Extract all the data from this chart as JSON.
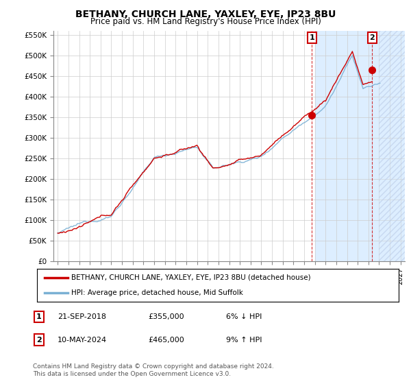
{
  "title": "BETHANY, CHURCH LANE, YAXLEY, EYE, IP23 8BU",
  "subtitle": "Price paid vs. HM Land Registry's House Price Index (HPI)",
  "ylabel_ticks": [
    "£0",
    "£50K",
    "£100K",
    "£150K",
    "£200K",
    "£250K",
    "£300K",
    "£350K",
    "£400K",
    "£450K",
    "£500K",
    "£550K"
  ],
  "ylim": [
    0,
    560000
  ],
  "xlim_start": 1994.6,
  "xlim_end": 2027.4,
  "sale1_date": "21-SEP-2018",
  "sale1_price": 355000,
  "sale1_year": 2018.72,
  "sale1_pct": "6% ↓ HPI",
  "sale2_date": "10-MAY-2024",
  "sale2_price": 465000,
  "sale2_year": 2024.36,
  "sale2_pct": "9% ↑ HPI",
  "legend_line1": "BETHANY, CHURCH LANE, YAXLEY, EYE, IP23 8BU (detached house)",
  "legend_line2": "HPI: Average price, detached house, Mid Suffolk",
  "footer1": "Contains HM Land Registry data © Crown copyright and database right 2024.",
  "footer2": "This data is licensed under the Open Government Licence v3.0.",
  "line_red_color": "#cc0000",
  "line_blue_color": "#7ab0d4",
  "bg_future_color": "#ddeeff",
  "grid_color": "#cccccc",
  "future_start_year": 2019.0,
  "hatch_start_year": 2025.0
}
